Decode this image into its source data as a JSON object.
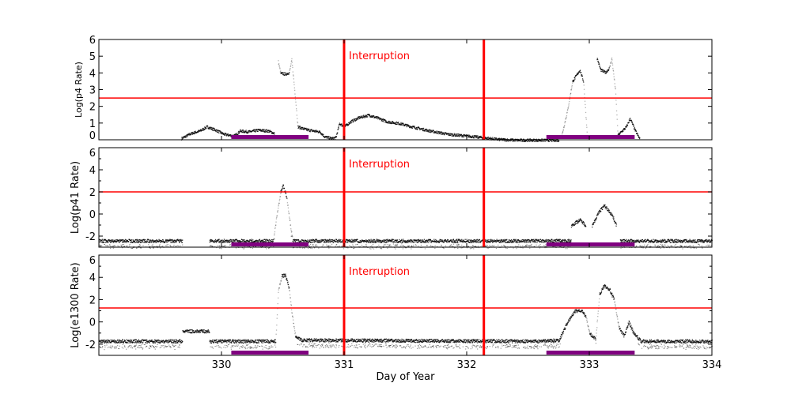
{
  "chart_data": [
    {
      "type": "scatter",
      "ylabel": "Log(p4 Rate)",
      "xlim": [
        329,
        334
      ],
      "ylim": [
        0,
        6
      ],
      "yticks": [
        "0",
        "1",
        "2",
        "3",
        "4",
        "5",
        "6"
      ],
      "threshold": 2.5,
      "annotation": "Interruption",
      "segments": [
        [
          [
            329.67,
            0.1
          ],
          [
            329.75,
            0.4
          ],
          [
            329.82,
            0.55
          ],
          [
            329.88,
            0.8
          ],
          [
            329.95,
            0.6
          ],
          [
            330.02,
            0.35
          ],
          [
            330.1,
            0.25
          ],
          [
            330.15,
            0.55
          ],
          [
            330.22,
            0.5
          ],
          [
            330.3,
            0.6
          ],
          [
            330.38,
            0.55
          ],
          [
            330.43,
            0.4
          ]
        ],
        [
          [
            330.46,
            4.7
          ],
          [
            330.48,
            4.0
          ],
          [
            330.52,
            3.95
          ],
          [
            330.55,
            4.05
          ],
          [
            330.57,
            4.8
          ],
          [
            330.6,
            2.5
          ],
          [
            330.62,
            0.8
          ],
          [
            330.68,
            0.65
          ],
          [
            330.75,
            0.55
          ],
          [
            330.8,
            0.5
          ],
          [
            330.84,
            0.2
          ],
          [
            330.9,
            0.1
          ],
          [
            330.93,
            0.15
          ],
          [
            330.96,
            1.0
          ],
          [
            331.0,
            0.8
          ],
          [
            331.05,
            1.1
          ],
          [
            331.12,
            1.35
          ],
          [
            331.2,
            1.5
          ],
          [
            331.28,
            1.3
          ],
          [
            331.35,
            1.1
          ],
          [
            331.45,
            1.0
          ],
          [
            331.55,
            0.8
          ],
          [
            331.7,
            0.55
          ],
          [
            331.85,
            0.35
          ],
          [
            332.0,
            0.25
          ],
          [
            332.14,
            0.15
          ],
          [
            332.25,
            0.05
          ],
          [
            332.4,
            0.0
          ],
          [
            332.75,
            0.0
          ]
        ],
        [
          [
            332.77,
            0.2
          ],
          [
            332.82,
            1.8
          ],
          [
            332.86,
            3.5
          ],
          [
            332.92,
            4.2
          ],
          [
            332.95,
            3.5
          ],
          [
            332.98,
            0.3
          ]
        ],
        [
          [
            333.06,
            4.9
          ],
          [
            333.09,
            4.2
          ],
          [
            333.13,
            4.05
          ],
          [
            333.16,
            4.3
          ],
          [
            333.18,
            4.9
          ],
          [
            333.21,
            3.0
          ],
          [
            333.23,
            0.3
          ],
          [
            333.3,
            0.8
          ],
          [
            333.33,
            1.3
          ],
          [
            333.37,
            0.6
          ],
          [
            333.41,
            0.05
          ]
        ]
      ],
      "bars": [
        [
          330.08,
          330.71
        ],
        [
          332.65,
          333.37
        ]
      ]
    },
    {
      "type": "scatter",
      "ylabel": "Log(p41 Rate)",
      "xlim": [
        329,
        334
      ],
      "ylim": [
        -3,
        6
      ],
      "yticks": [
        "-2",
        "0",
        "2",
        "4",
        "6"
      ],
      "threshold": 2.0,
      "annotation": "Interruption",
      "segments": [
        [
          [
            329.0,
            -2.4
          ],
          [
            329.68,
            -2.4
          ]
        ],
        [
          [
            329.9,
            -2.4
          ],
          [
            330.42,
            -2.4
          ],
          [
            330.45,
            0.0
          ],
          [
            330.48,
            2.0
          ],
          [
            330.5,
            2.6
          ],
          [
            330.53,
            1.5
          ],
          [
            330.56,
            -1.0
          ],
          [
            330.58,
            -2.4
          ],
          [
            332.85,
            -2.4
          ]
        ],
        [
          [
            332.85,
            -1.0
          ],
          [
            332.92,
            -0.5
          ],
          [
            332.97,
            -1.0
          ]
        ],
        [
          [
            333.02,
            -1.0
          ],
          [
            333.08,
            0.3
          ],
          [
            333.12,
            0.8
          ],
          [
            333.18,
            0.0
          ],
          [
            333.22,
            -1.0
          ]
        ],
        [
          [
            333.25,
            -2.4
          ],
          [
            334.0,
            -2.4
          ]
        ]
      ],
      "bars": [
        [
          330.08,
          330.71
        ],
        [
          332.65,
          333.37
        ]
      ]
    },
    {
      "type": "scatter",
      "ylabel": "Log(e1300 Rate)",
      "xlabel": "Day of Year",
      "xlim": [
        329,
        334
      ],
      "ylim": [
        -3,
        6
      ],
      "xticks": [
        "330",
        "331",
        "332",
        "333",
        "334"
      ],
      "yticks": [
        "-2",
        "0",
        "2",
        "4",
        "6"
      ],
      "threshold": 1.25,
      "annotation": "Interruption",
      "segments": [
        [
          [
            329.0,
            -1.7
          ],
          [
            329.68,
            -1.7
          ]
        ],
        [
          [
            329.68,
            -0.8
          ],
          [
            329.9,
            -0.8
          ]
        ],
        [
          [
            329.9,
            -1.7
          ],
          [
            330.44,
            -1.7
          ],
          [
            330.46,
            2.8
          ],
          [
            330.49,
            4.2
          ],
          [
            330.52,
            4.2
          ],
          [
            330.55,
            3.0
          ],
          [
            330.57,
            1.0
          ],
          [
            330.6,
            -1.2
          ],
          [
            330.65,
            -1.6
          ],
          [
            332.6,
            -1.7
          ],
          [
            332.75,
            -1.6
          ],
          [
            332.82,
            0.0
          ],
          [
            332.88,
            1.0
          ],
          [
            332.93,
            1.1
          ],
          [
            332.97,
            0.5
          ],
          [
            333.0,
            -1.0
          ],
          [
            333.05,
            -1.5
          ],
          [
            333.08,
            2.5
          ],
          [
            333.12,
            3.3
          ],
          [
            333.16,
            3.0
          ],
          [
            333.2,
            2.0
          ],
          [
            333.24,
            -0.5
          ],
          [
            333.28,
            -1.2
          ],
          [
            333.32,
            0.0
          ],
          [
            333.36,
            -1.0
          ],
          [
            333.42,
            -1.7
          ],
          [
            334.0,
            -1.7
          ]
        ]
      ],
      "bars": [
        [
          330.08,
          330.71
        ],
        [
          332.65,
          333.37
        ]
      ]
    }
  ],
  "interruptions": [
    331.0,
    332.14
  ],
  "colors": {
    "threshold": "#ff0000",
    "interruption": "#ff0000",
    "bar": "#800080",
    "points": "#000000"
  }
}
